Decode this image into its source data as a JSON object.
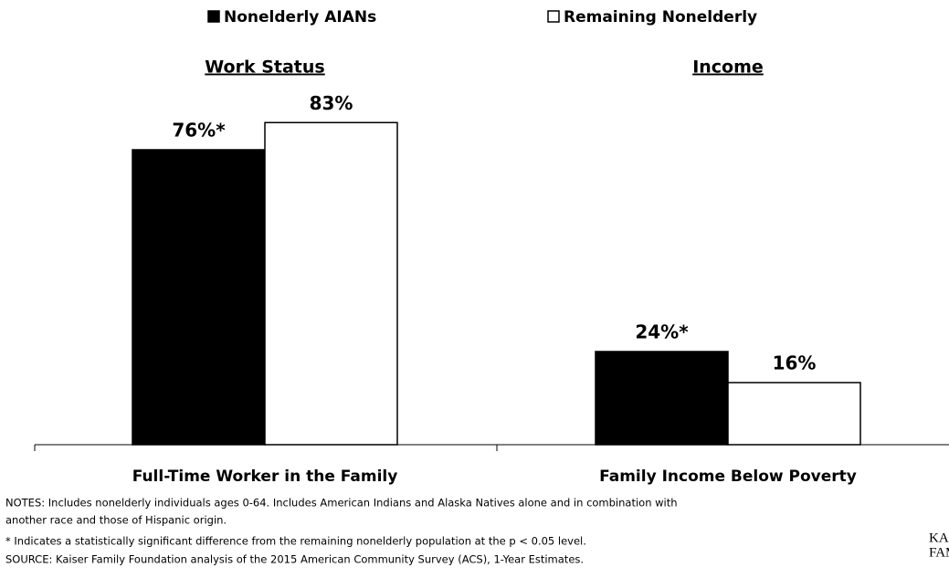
{
  "chart_data": {
    "type": "bar",
    "categories": [
      "Full-Time Worker in the Family",
      "Family Income Below Poverty"
    ],
    "group_titles": [
      "Work Status",
      "Income"
    ],
    "series": [
      {
        "name": "Nonelderly AIANs",
        "color": "#000000",
        "values": [
          76,
          24
        ],
        "value_labels": [
          "76%*",
          "24%*"
        ]
      },
      {
        "name": "Remaining Nonelderly",
        "color": "#ffffff",
        "values": [
          83,
          16
        ],
        "value_labels": [
          "83%",
          "16%"
        ]
      }
    ],
    "notes": [
      "NOTES:  Includes nonelderly individuals ages 0-64. Includes American Indians and Alaska Natives alone and in combination with",
      "another race and those of Hispanic origin.",
      "* Indicates a statistically significant difference from the remaining nonelderly population at the p < 0.05 level.",
      "SOURCE: Kaiser Family Foundation analysis of the 2015 American Community Survey (ACS), 1-Year Estimates."
    ],
    "logo": [
      "KAI",
      "FAM"
    ]
  }
}
